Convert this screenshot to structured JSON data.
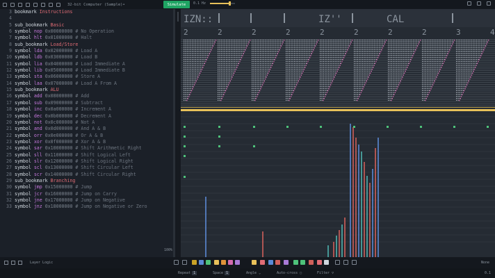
{
  "window": {
    "title": "32-bit Computer (Sample)•",
    "simulate_label": "Simulate",
    "speed_label": "0.1 Hz"
  },
  "code": {
    "lines": [
      {
        "n": "3",
        "kind": "bookmark",
        "kw": "bookmark",
        "name": "Instructions"
      },
      {
        "n": "4",
        "kind": "blank"
      },
      {
        "n": "5",
        "kind": "subbookmark",
        "kw": "sub_bookmark",
        "name": "Basic"
      },
      {
        "n": "6",
        "kind": "symbol",
        "kw": "symbol",
        "name": "nop",
        "hex": "0x00000000",
        "comment": "# No Operation"
      },
      {
        "n": "7",
        "kind": "symbol",
        "kw": "symbol",
        "name": "hlt",
        "hex": "0x01000000",
        "comment": "# Halt"
      },
      {
        "n": "8",
        "kind": "subbookmark",
        "kw": "sub_bookmark",
        "name": "Load/Store"
      },
      {
        "n": "9",
        "kind": "symbol",
        "kw": "symbol",
        "name": "lda",
        "hex": "0x02000000",
        "comment": "# Load A"
      },
      {
        "n": "10",
        "kind": "symbol",
        "kw": "symbol",
        "name": "ldb",
        "hex": "0x03000000",
        "comment": "# Load B"
      },
      {
        "n": "11",
        "kind": "symbol",
        "kw": "symbol",
        "name": "lia",
        "hex": "0x04000000",
        "comment": "# Load Immediate A"
      },
      {
        "n": "12",
        "kind": "symbol",
        "kw": "symbol",
        "name": "lib",
        "hex": "0x05000000",
        "comment": "# Load Immediate B"
      },
      {
        "n": "13",
        "kind": "symbol",
        "kw": "symbol",
        "name": "sta",
        "hex": "0x06000000",
        "comment": "# Store A"
      },
      {
        "n": "14",
        "kind": "symbol",
        "kw": "symbol",
        "name": "laa",
        "hex": "0x07000000",
        "comment": "# Load A From A"
      },
      {
        "n": "15",
        "kind": "subbookmark",
        "kw": "sub_bookmark",
        "name": "ALU"
      },
      {
        "n": "16",
        "kind": "symbol",
        "kw": "symbol",
        "name": "add",
        "hex": "0x08000000",
        "comment": "# Add"
      },
      {
        "n": "17",
        "kind": "symbol",
        "kw": "symbol",
        "name": "sub",
        "hex": "0x09000000",
        "comment": "# Subtract"
      },
      {
        "n": "18",
        "kind": "symbol",
        "kw": "symbol",
        "name": "inc",
        "hex": "0x0a000000",
        "comment": "# Increment A"
      },
      {
        "n": "19",
        "kind": "symbol",
        "kw": "symbol",
        "name": "dec",
        "hex": "0x0b000000",
        "comment": "# Decrement A"
      },
      {
        "n": "20",
        "kind": "symbol",
        "kw": "symbol",
        "name": "not",
        "hex": "0x0c000000",
        "comment": "# Not A"
      },
      {
        "n": "21",
        "kind": "symbol",
        "kw": "symbol",
        "name": "and",
        "hex": "0x0d000000",
        "comment": "# And A & B"
      },
      {
        "n": "22",
        "kind": "symbol",
        "kw": "symbol",
        "name": "orr",
        "hex": "0x0e000000",
        "comment": "# Or A & B"
      },
      {
        "n": "23",
        "kind": "symbol",
        "kw": "symbol",
        "name": "xor",
        "hex": "0x0f000000",
        "comment": "# Xor A & B"
      },
      {
        "n": "24",
        "kind": "symbol",
        "kw": "symbol",
        "name": "sar",
        "hex": "0x10000000",
        "comment": "# Shift Arithmetic Right"
      },
      {
        "n": "25",
        "kind": "symbol",
        "kw": "symbol",
        "name": "sll",
        "hex": "0x11000000",
        "comment": "# Shift Logical Left"
      },
      {
        "n": "26",
        "kind": "symbol",
        "kw": "symbol",
        "name": "slr",
        "hex": "0x12000000",
        "comment": "# Shift Logical Right"
      },
      {
        "n": "27",
        "kind": "symbol",
        "kw": "symbol",
        "name": "scl",
        "hex": "0x13000000",
        "comment": "# Shift Circular Left"
      },
      {
        "n": "28",
        "kind": "symbol",
        "kw": "symbol",
        "name": "scr",
        "hex": "0x14000000",
        "comment": "# Shift Circular Right"
      },
      {
        "n": "29",
        "kind": "subbookmark",
        "kw": "sub_bookmark",
        "name": "Branching"
      },
      {
        "n": "30",
        "kind": "symbol",
        "kw": "symbol",
        "name": "jmp",
        "hex": "0x15000000",
        "comment": "# Jump"
      },
      {
        "n": "31",
        "kind": "symbol",
        "kw": "symbol",
        "name": "jcr",
        "hex": "0x16000000",
        "comment": "# Jump on Carry"
      },
      {
        "n": "32",
        "kind": "symbol",
        "kw": "symbol",
        "name": "jne",
        "hex": "0x17000000",
        "comment": "# Jump on Negative"
      },
      {
        "n": "33",
        "kind": "symbol",
        "kw": "symbol",
        "name": "jnz",
        "hex": "0x18000000",
        "comment": "# Jump on Negative or Zero"
      }
    ]
  },
  "canvas": {
    "top_labels": [
      "IZN::",
      "IZ''",
      "CAL"
    ],
    "column_digits": [
      "2",
      "2",
      "2",
      "2",
      "2",
      "2",
      "2",
      "2",
      "3",
      "4",
      "2"
    ],
    "colors": {
      "bus": "#e8c15a",
      "wire": "#8a939e",
      "green": "#4ec27a",
      "blue": "#5b8ad6",
      "red": "#d0605a",
      "teal": "#4fb3b0",
      "pink": "#d46bb0"
    },
    "zoom": "100%"
  },
  "status": {
    "layer_label": "Layer Logic",
    "mode_label": "None"
  },
  "bottom": {
    "repeat_label": "Repeat",
    "repeat_value": "1",
    "space_label": "Space",
    "space_value": "1",
    "angle_label": "Angle",
    "autocross_label": "Auto-cross",
    "filter_label": "Filter",
    "version": "0.1"
  }
}
